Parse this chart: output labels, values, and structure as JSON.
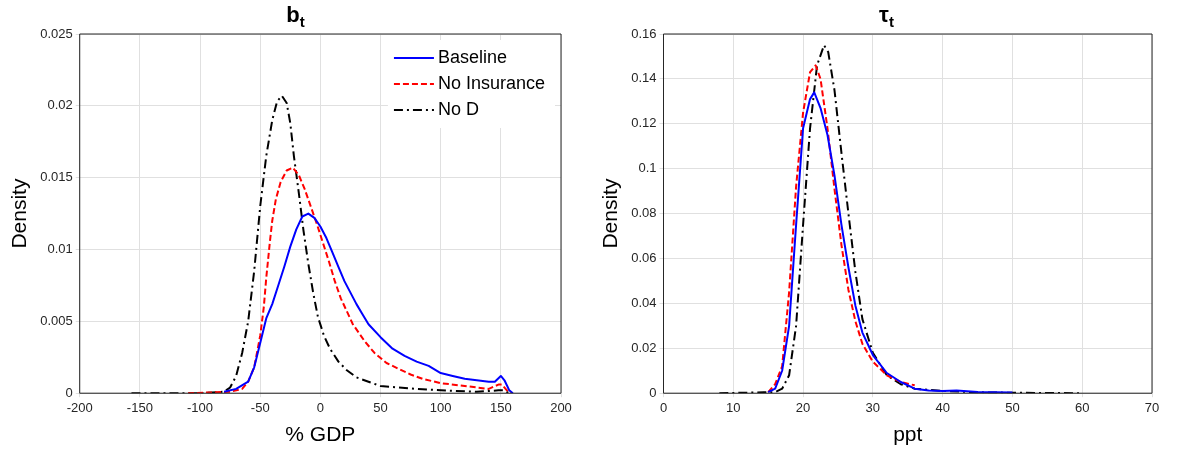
{
  "chart_data": [
    {
      "type": "line",
      "title": "b$_{t}$",
      "xlabel": "% GDP",
      "ylabel": "Density",
      "xlim": [
        -200,
        200
      ],
      "xticks": [
        -200,
        -150,
        -100,
        -50,
        0,
        50,
        100,
        150,
        200
      ],
      "ylim": [
        0,
        0.025
      ],
      "yticks": [
        0,
        0.005,
        0.01,
        0.015,
        0.02,
        0.025
      ],
      "grid": true,
      "legend": "top right",
      "series": [
        {
          "name": "Baseline",
          "color": "#0000ff",
          "line_style": "solid",
          "x": [
            -80,
            -70,
            -60,
            -55,
            -50,
            -45,
            -40,
            -35,
            -30,
            -25,
            -20,
            -15,
            -10,
            -5,
            0,
            5,
            10,
            15,
            20,
            25,
            30,
            35,
            40,
            50,
            60,
            70,
            80,
            90,
            100,
            110,
            120,
            130,
            140,
            145,
            150,
            153,
            157,
            160
          ],
          "values": [
            0.0001,
            0.0003,
            0.0008,
            0.0018,
            0.0035,
            0.0052,
            0.0062,
            0.0075,
            0.0088,
            0.0102,
            0.0114,
            0.0123,
            0.0125,
            0.0122,
            0.0116,
            0.0108,
            0.0098,
            0.0088,
            0.0078,
            0.007,
            0.0062,
            0.0055,
            0.0048,
            0.0039,
            0.0031,
            0.0026,
            0.0022,
            0.0019,
            0.0014,
            0.0012,
            0.001,
            0.0009,
            0.0008,
            0.0008,
            0.0012,
            0.0009,
            0.0002,
            0
          ]
        },
        {
          "name": "No Insurance",
          "color": "#ff0000",
          "line_style": "dashed",
          "x": [
            -110,
            -75,
            -65,
            -60,
            -55,
            -50,
            -47,
            -45,
            -42,
            -40,
            -37,
            -33,
            -28,
            -23,
            -18,
            -13,
            -8,
            -3,
            2,
            7,
            12,
            17,
            22,
            27,
            32,
            37,
            45,
            55,
            65,
            75,
            85,
            100,
            120,
            140,
            148,
            151,
            155,
            158
          ],
          "values": [
            0,
            0.0001,
            0.0003,
            0.0008,
            0.0018,
            0.004,
            0.006,
            0.008,
            0.0105,
            0.012,
            0.0135,
            0.0147,
            0.0155,
            0.0157,
            0.0152,
            0.0142,
            0.013,
            0.0118,
            0.0105,
            0.0092,
            0.0078,
            0.0066,
            0.0057,
            0.0048,
            0.0042,
            0.0036,
            0.0028,
            0.0021,
            0.0017,
            0.0013,
            0.001,
            0.0007,
            0.0005,
            0.0003,
            0.0006,
            0.0006,
            0.0002,
            0
          ]
        },
        {
          "name": "No D",
          "color": "#000000",
          "line_style": "dashdot",
          "x": [
            -157,
            -100,
            -80,
            -75,
            -70,
            -65,
            -60,
            -55,
            -50,
            -45,
            -40,
            -36,
            -32,
            -28,
            -25,
            -22,
            -18,
            -14,
            -10,
            -6,
            -2,
            3,
            8,
            15,
            22,
            30,
            40,
            50,
            65,
            80,
            100,
            130,
            148,
            152,
            157
          ],
          "values": [
            0,
            0,
            0.0001,
            0.0004,
            0.0012,
            0.0028,
            0.005,
            0.0085,
            0.013,
            0.0165,
            0.019,
            0.0203,
            0.0207,
            0.0202,
            0.0188,
            0.0165,
            0.014,
            0.0113,
            0.009,
            0.007,
            0.0053,
            0.004,
            0.0031,
            0.0022,
            0.0016,
            0.0011,
            0.0008,
            0.0005,
            0.0004,
            0.0003,
            0.0002,
            0.0001,
            0.0002,
            0.0002,
            0
          ]
        }
      ]
    },
    {
      "type": "line",
      "title": "τ$_{t}$",
      "xlabel": "ppt",
      "ylabel": "Density",
      "xlim": [
        0,
        70
      ],
      "xticks": [
        0,
        10,
        20,
        30,
        40,
        50,
        60,
        70
      ],
      "ylim": [
        0,
        0.16
      ],
      "yticks": [
        0,
        0.02,
        0.04,
        0.06,
        0.08,
        0.1,
        0.12,
        0.14,
        0.16
      ],
      "grid": true,
      "legend": false,
      "series": [
        {
          "color": "#0000ff",
          "line_style": "solid",
          "x": [
            15,
            16,
            17,
            18,
            19,
            20,
            21,
            21.6,
            22.5,
            23.5,
            24.5,
            25.5,
            26.5,
            27.5,
            28.5,
            30,
            32,
            34,
            36,
            38,
            40,
            42,
            45,
            50
          ],
          "values": [
            0.0005,
            0.002,
            0.01,
            0.03,
            0.075,
            0.118,
            0.131,
            0.134,
            0.127,
            0.115,
            0.097,
            0.075,
            0.056,
            0.039,
            0.027,
            0.017,
            0.009,
            0.005,
            0.002,
            0.0012,
            0.001,
            0.0012,
            0.0005,
            0.0003
          ]
        },
        {
          "color": "#ff0000",
          "line_style": "dashed",
          "x": [
            15,
            16,
            17,
            18,
            19,
            20,
            21,
            21.8,
            22.5,
            23.5,
            24.5,
            25.5,
            26.5,
            27.5,
            28.5,
            30,
            32,
            34,
            36
          ],
          "values": [
            0.0005,
            0.004,
            0.012,
            0.045,
            0.092,
            0.125,
            0.143,
            0.146,
            0.14,
            0.118,
            0.091,
            0.066,
            0.046,
            0.032,
            0.022,
            0.014,
            0.008,
            0.005,
            0.0035
          ]
        },
        {
          "color": "#000000",
          "line_style": "dashdot",
          "x": [
            8,
            16,
            17,
            18,
            19,
            20,
            21,
            22,
            23,
            23.6,
            24.5,
            25.5,
            26.5,
            27.5,
            28.5,
            30,
            32,
            34,
            36,
            40,
            45,
            50,
            60
          ],
          "values": [
            0,
            0.0005,
            0.002,
            0.008,
            0.03,
            0.075,
            0.118,
            0.146,
            0.155,
            0.152,
            0.135,
            0.107,
            0.08,
            0.054,
            0.033,
            0.018,
            0.008,
            0.004,
            0.002,
            0.001,
            0.0004,
            0.0002,
            0
          ]
        }
      ]
    }
  ]
}
